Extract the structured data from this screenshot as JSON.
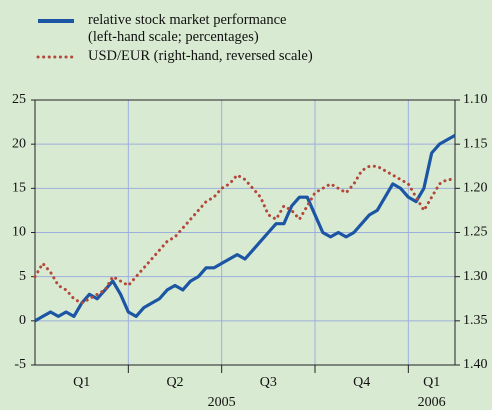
{
  "chart_data": {
    "type": "line",
    "xlim": [
      0,
      13.5
    ],
    "xticks": [
      3,
      6,
      9,
      12
    ],
    "x_labels": [
      "Q1",
      "Q2",
      "Q3",
      "Q4",
      "Q1"
    ],
    "years": [
      "2005",
      "2006"
    ],
    "x": [
      0,
      0.25,
      0.5,
      0.75,
      1,
      1.25,
      1.5,
      1.75,
      2,
      2.25,
      2.5,
      2.75,
      3,
      3.25,
      3.5,
      3.75,
      4,
      4.25,
      4.5,
      4.75,
      5,
      5.25,
      5.5,
      5.75,
      6,
      6.25,
      6.5,
      6.75,
      7,
      7.25,
      7.5,
      7.75,
      8,
      8.25,
      8.5,
      8.75,
      9,
      9.25,
      9.5,
      9.75,
      10,
      10.25,
      10.5,
      10.75,
      11,
      11.25,
      11.5,
      11.75,
      12,
      12.25,
      12.5,
      12.75,
      13,
      13.25,
      13.5
    ],
    "ylim": [
      -5,
      25
    ],
    "yticks": [
      -5,
      0,
      5,
      10,
      15,
      20,
      25
    ],
    "y2lim": [
      1.1,
      1.4
    ],
    "y2_reversed": true,
    "y2ticks": [
      {
        "value": 1.1,
        "label": "1.10"
      },
      1.15,
      {
        "value": 1.2,
        "label": "1.20"
      },
      1.25,
      {
        "value": 1.3,
        "label": "1.30"
      },
      1.35,
      {
        "value": 1.4,
        "label": "1.40"
      }
    ],
    "grid": true,
    "legend": "top-left",
    "series": [
      {
        "name": "relative stock market performance\n(left-hand scale; percentages)",
        "color": "#1c55a4",
        "style": "solid",
        "values": [
          0,
          0.5,
          1,
          0.5,
          1,
          0.5,
          2,
          3,
          2.5,
          3.5,
          4.5,
          3,
          1,
          0.5,
          1.5,
          2,
          2.5,
          3.5,
          4,
          3.5,
          4.5,
          5,
          6,
          6,
          6.5,
          7,
          7.5,
          7,
          8,
          9,
          10,
          11,
          11,
          13,
          14,
          14,
          12,
          10,
          9.5,
          10,
          9.5,
          10,
          11,
          12,
          12.5,
          14,
          15.5,
          15,
          14,
          13.5,
          15,
          19,
          20,
          20.5,
          21
        ]
      },
      {
        "name": "USD/EUR (right-hand, reversed scale)",
        "color": "#b5473a",
        "style": "dotted",
        "axis": "y2",
        "values": [
          1.3,
          1.285,
          1.295,
          1.31,
          1.315,
          1.325,
          1.33,
          1.325,
          1.32,
          1.315,
          1.3,
          1.305,
          1.31,
          1.3,
          1.29,
          1.28,
          1.27,
          1.26,
          1.255,
          1.245,
          1.235,
          1.225,
          1.215,
          1.21,
          1.2,
          1.195,
          1.185,
          1.19,
          1.2,
          1.21,
          1.23,
          1.235,
          1.22,
          1.225,
          1.235,
          1.22,
          1.205,
          1.2,
          1.195,
          1.2,
          1.205,
          1.195,
          1.18,
          1.175,
          1.175,
          1.18,
          1.185,
          1.19,
          1.195,
          1.21,
          1.225,
          1.21,
          1.195,
          1.19,
          1.19
        ]
      }
    ]
  }
}
